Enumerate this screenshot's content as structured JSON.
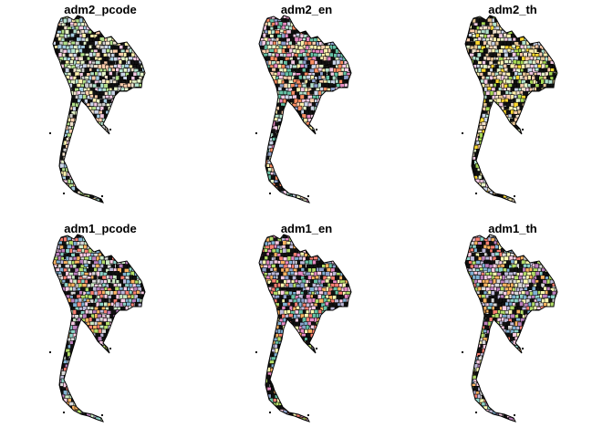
{
  "panels": [
    {
      "title": "adm2_pcode",
      "palette": [
        "#b3e2cd",
        "#fdcdac",
        "#cbd5e8",
        "#f4cae4",
        "#e6f5c9",
        "#fff2ae",
        "#f1e2cc",
        "#cccccc",
        "#a6cee3",
        "#b2df8a"
      ]
    },
    {
      "title": "adm2_en",
      "palette": [
        "#b3e2cd",
        "#fdcdac",
        "#cbd5e8",
        "#f4cae4",
        "#e6f5c9",
        "#fff2ae",
        "#8da0cb",
        "#66c2a5",
        "#fc8d62",
        "#e78ac3"
      ]
    },
    {
      "title": "adm2_th",
      "palette": [
        "#b3e2cd",
        "#fdcdac",
        "#cbd5e8",
        "#f4cae4",
        "#e6f5c9",
        "#fff2ae",
        "#f1e2cc",
        "#a6d854",
        "#ffd92f",
        "#e5c494"
      ]
    },
    {
      "title": "adm1_pcode",
      "palette": [
        "#8dd3c7",
        "#bebada",
        "#fb8072",
        "#80b1d3",
        "#fdb462",
        "#b3de69",
        "#fccde5",
        "#d9d9d9",
        "#bc80bd",
        "#ccebc5"
      ]
    },
    {
      "title": "adm1_en",
      "palette": [
        "#fb8072",
        "#8da0cb",
        "#b3de69",
        "#fdb462",
        "#ffffb3",
        "#bebada",
        "#80b1d3",
        "#fccde5",
        "#66c2a5",
        "#e78ac3"
      ]
    },
    {
      "title": "adm1_th",
      "palette": [
        "#bebada",
        "#fb8072",
        "#80b1d3",
        "#b3de69",
        "#fdb462",
        "#8dd3c7",
        "#fccde5",
        "#ffffb3",
        "#d9d9d9",
        "#bc80bd"
      ]
    }
  ]
}
